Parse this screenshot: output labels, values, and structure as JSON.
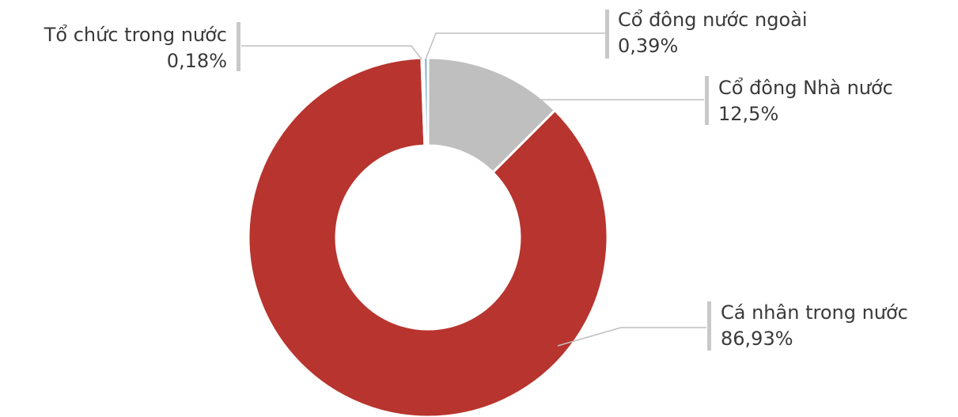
{
  "chart_data": {
    "type": "pie",
    "variant": "donut",
    "title": "",
    "categories": [
      "Cổ đông Nhà nước",
      "Cá nhân trong nước",
      "Tổ chức trong nước",
      "Cổ đông nước ngoài"
    ],
    "values": [
      12.5,
      86.93,
      0.18,
      0.39
    ],
    "value_labels": [
      "12,5%",
      "86,93%",
      "0,18%",
      "0,39%"
    ],
    "colors": [
      "#bfbfbf",
      "#b8342e",
      "#e9c2c0",
      "#8db4d6"
    ],
    "legend": "none",
    "label_lines": "#bfbfbf"
  }
}
